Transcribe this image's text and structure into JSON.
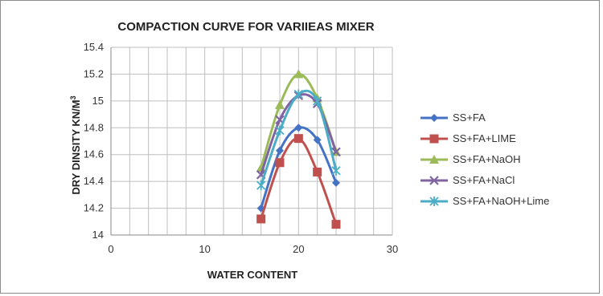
{
  "chart_data": {
    "type": "line",
    "title": "COMPACTION CURVE FOR VARIIEAS MIXER",
    "xlabel": "WATER CONTENT",
    "ylabel": "DRY DINSITY KN/M",
    "ylabel_sup": "3",
    "xlim": [
      0,
      30
    ],
    "ylim": [
      14,
      15.4
    ],
    "x_ticks": [
      {
        "value": 0,
        "label": "0"
      },
      {
        "value": 10,
        "label": "10"
      },
      {
        "value": 20,
        "label": "20"
      },
      {
        "value": 30,
        "label": "30"
      }
    ],
    "y_ticks": [
      {
        "value": 14,
        "label": "14"
      },
      {
        "value": 14.2,
        "label": "14.2"
      },
      {
        "value": 14.4,
        "label": "14.4"
      },
      {
        "value": 14.6,
        "label": "14.6"
      },
      {
        "value": 14.8,
        "label": "14.8"
      },
      {
        "value": 15,
        "label": "15"
      },
      {
        "value": 15.2,
        "label": "15.2"
      },
      {
        "value": 15.4,
        "label": "15.4"
      }
    ],
    "grid": true,
    "legend_position": "right",
    "series": [
      {
        "name": "SS+FA",
        "color": "#4472c4",
        "marker": "diamond",
        "x": [
          16,
          18,
          20,
          22,
          24
        ],
        "y": [
          14.2,
          14.63,
          14.8,
          14.71,
          14.39
        ]
      },
      {
        "name": "SS+FA+LIME",
        "color": "#c0504d",
        "marker": "square",
        "x": [
          16,
          18,
          20,
          22,
          24
        ],
        "y": [
          14.12,
          14.54,
          14.72,
          14.47,
          14.08
        ]
      },
      {
        "name": "SS+FA+NaOH",
        "color": "#9bbb59",
        "marker": "triangle",
        "x": [
          16,
          18,
          20,
          22,
          24
        ],
        "y": [
          14.5,
          14.97,
          15.2,
          15.02,
          14.62
        ]
      },
      {
        "name": "SS+FA+NaCl",
        "color": "#8064a2",
        "marker": "x",
        "x": [
          16,
          18,
          20,
          22,
          24
        ],
        "y": [
          14.45,
          14.86,
          15.04,
          14.98,
          14.62
        ]
      },
      {
        "name": "SS+FA+NaOH+Lime",
        "color": "#4bacc6",
        "marker": "star",
        "x": [
          16,
          18,
          20,
          22,
          24
        ],
        "y": [
          14.37,
          14.78,
          15.05,
          15.0,
          14.48
        ]
      }
    ]
  }
}
